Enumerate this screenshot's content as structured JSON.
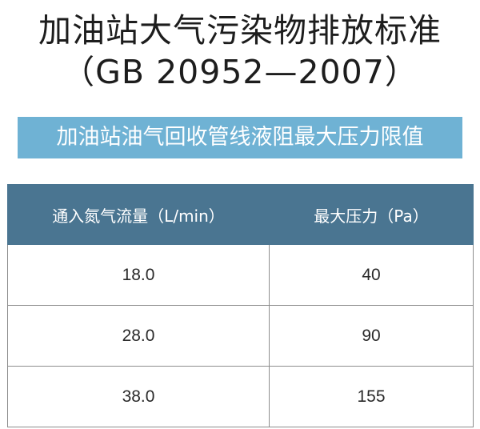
{
  "title": {
    "line1": "加油站大气污染物排放标准",
    "line2": "（GB 20952—2007）"
  },
  "banner": {
    "text": "加油站油气回收管线液阻最大压力限值"
  },
  "table": {
    "headers": [
      "通入氮气流量（L/min）",
      "最大压力（Pa）"
    ],
    "rows": [
      [
        "18.0",
        "40"
      ],
      [
        "28.0",
        "90"
      ],
      [
        "38.0",
        "155"
      ]
    ]
  },
  "colors": {
    "banner": "#6fb2d4",
    "header": "#4a7591",
    "text": "#1d1d1d"
  }
}
